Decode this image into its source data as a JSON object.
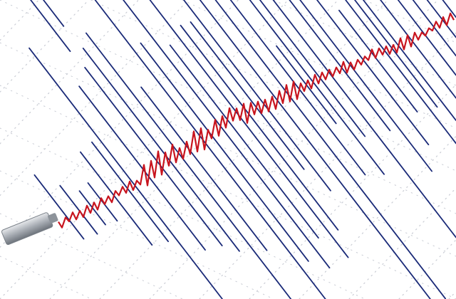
{
  "scene": {
    "subject": "seismograph",
    "colors": {
      "paper": "#ffffff",
      "grid": "#c9ccd4",
      "trace_blue": "#1a2a78",
      "trace_red": "#c8141e",
      "pen": "#a7acb3"
    }
  }
}
